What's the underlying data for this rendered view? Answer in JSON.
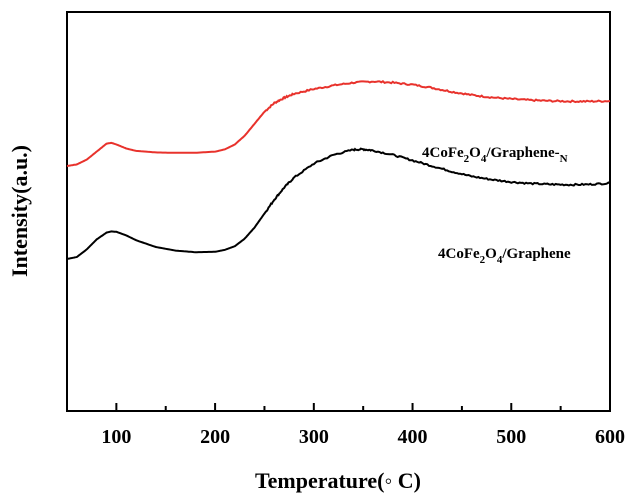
{
  "chart_data": {
    "type": "line",
    "xlabel": "Temperature(◦ C)",
    "ylabel": "Intensity(a.u.)",
    "xlim": [
      50,
      600
    ],
    "ylim": [
      0,
      1
    ],
    "x_ticks": [
      "100",
      "200",
      "300",
      "400",
      "500",
      "600"
    ],
    "grid": false,
    "y_ticks_shown": false,
    "series": [
      {
        "name": "4CoFe2O4/Graphene-N",
        "label_parts": [
          "4CoFe",
          "2",
          "O",
          "4",
          "/Graphene-",
          "N"
        ],
        "color": "#e8322c",
        "x": [
          50,
          60,
          70,
          80,
          90,
          95,
          100,
          110,
          120,
          140,
          160,
          180,
          200,
          210,
          220,
          230,
          240,
          250,
          260,
          270,
          280,
          300,
          320,
          340,
          360,
          380,
          400,
          420,
          440,
          460,
          480,
          500,
          520,
          540,
          560,
          580,
          600
        ],
        "y": [
          0.614,
          0.618,
          0.63,
          0.65,
          0.67,
          0.672,
          0.668,
          0.658,
          0.652,
          0.648,
          0.647,
          0.647,
          0.65,
          0.656,
          0.668,
          0.69,
          0.72,
          0.75,
          0.772,
          0.785,
          0.795,
          0.807,
          0.816,
          0.823,
          0.826,
          0.823,
          0.818,
          0.81,
          0.8,
          0.792,
          0.786,
          0.782,
          0.779,
          0.777,
          0.776,
          0.776,
          0.777
        ]
      },
      {
        "name": "4CoFe2O4/Graphene",
        "label_parts": [
          "4CoFe",
          "2",
          "O",
          "4",
          "/Graphene",
          ""
        ],
        "color": "#000000",
        "x": [
          50,
          60,
          70,
          80,
          90,
          95,
          100,
          110,
          120,
          140,
          160,
          180,
          200,
          210,
          220,
          230,
          240,
          250,
          260,
          270,
          280,
          300,
          320,
          340,
          350,
          360,
          380,
          400,
          420,
          440,
          460,
          480,
          500,
          520,
          540,
          560,
          580,
          600
        ],
        "y": [
          0.381,
          0.386,
          0.405,
          0.43,
          0.447,
          0.45,
          0.449,
          0.44,
          0.428,
          0.411,
          0.402,
          0.398,
          0.399,
          0.404,
          0.413,
          0.432,
          0.46,
          0.495,
          0.53,
          0.56,
          0.585,
          0.62,
          0.642,
          0.655,
          0.656,
          0.653,
          0.642,
          0.628,
          0.614,
          0.6,
          0.588,
          0.58,
          0.574,
          0.57,
          0.568,
          0.567,
          0.568,
          0.571
        ]
      }
    ]
  }
}
